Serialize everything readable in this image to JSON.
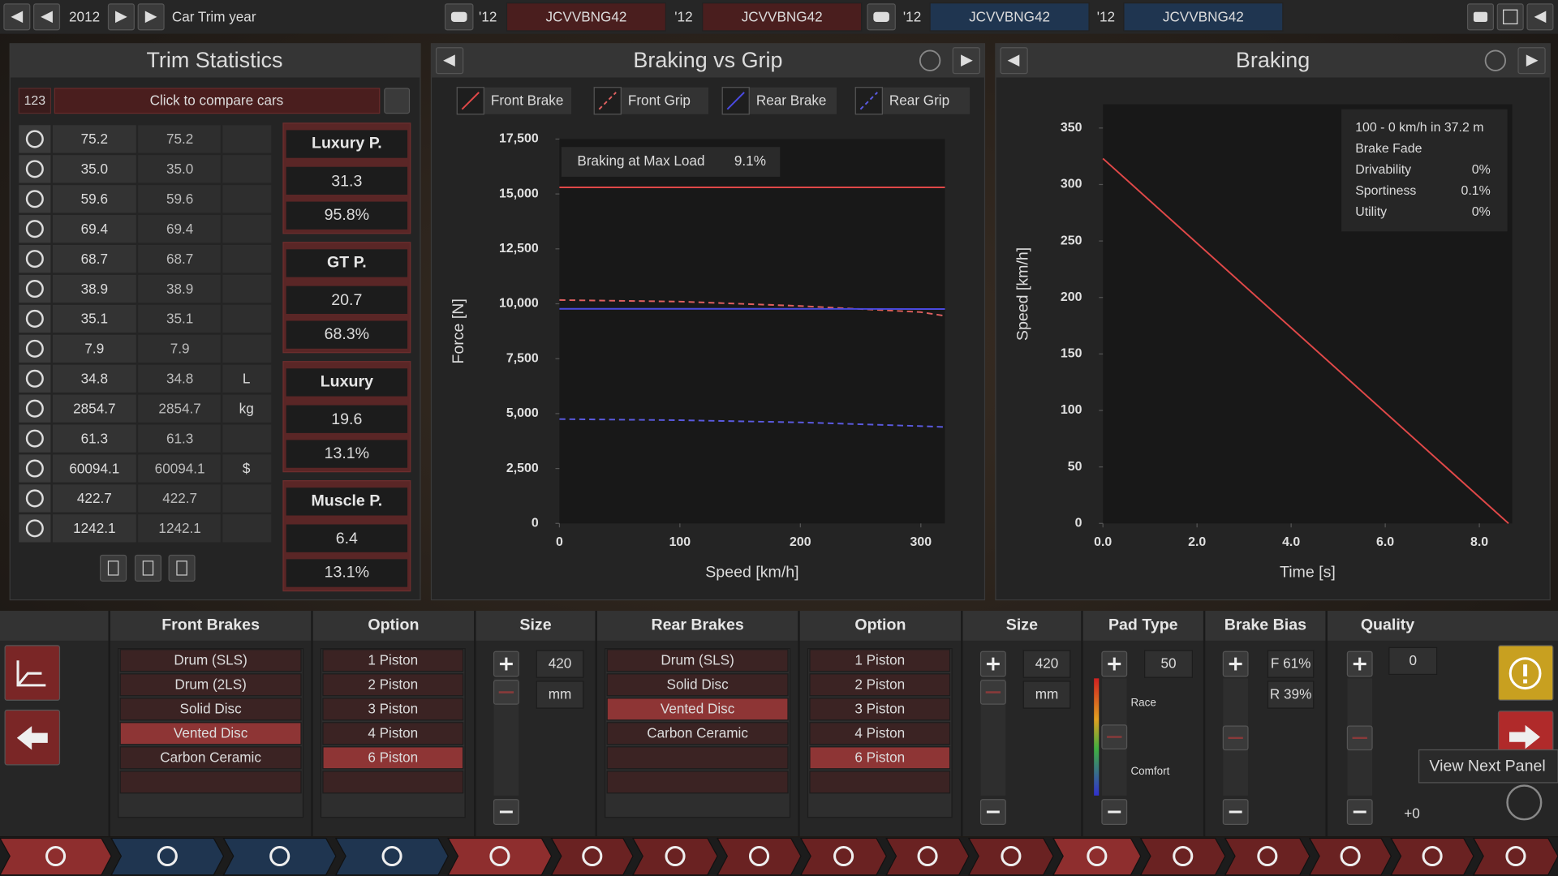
{
  "top_bar": {
    "year": "2012",
    "label": "Car Trim year",
    "slots": [
      {
        "year": "'12",
        "code": "JCVVBNG42"
      },
      {
        "year": "'12",
        "code": "JCVVBNG42"
      },
      {
        "year": "'12",
        "code": "JCVVBNG42"
      },
      {
        "year": "'12",
        "code": "JCVVBNG42"
      }
    ]
  },
  "trim_statistics": {
    "title": "Trim Statistics",
    "compare_count": "123",
    "compare_label": "Click to compare cars",
    "rows": [
      {
        "current": "75.2",
        "compare": "75.2"
      },
      {
        "current": "35.0",
        "compare": "35.0"
      },
      {
        "current": "59.6",
        "compare": "59.6"
      },
      {
        "current": "69.4",
        "compare": "69.4"
      },
      {
        "current": "68.7",
        "compare": "68.7"
      },
      {
        "current": "38.9",
        "compare": "38.9"
      },
      {
        "current": "35.1",
        "compare": "35.1"
      },
      {
        "current": "7.9",
        "compare": "7.9"
      },
      {
        "current": "34.8",
        "compare": "34.8",
        "unit": "L"
      },
      {
        "current": "2854.7",
        "compare": "2854.7",
        "unit": "kg"
      },
      {
        "current": "61.3",
        "compare": "61.3"
      },
      {
        "current": "60094.1",
        "compare": "60094.1",
        "unit": "$"
      },
      {
        "current": "422.7",
        "compare": "422.7"
      },
      {
        "current": "1242.1",
        "compare": "1242.1"
      }
    ],
    "scores": [
      {
        "name": "Luxury P.",
        "score": "31.3",
        "percent": "95.8%"
      },
      {
        "name": "GT P.",
        "score": "20.7",
        "percent": "68.3%"
      },
      {
        "name": "Luxury",
        "score": "19.6",
        "percent": "13.1%"
      },
      {
        "name": "Muscle P.",
        "score": "6.4",
        "percent": "13.1%"
      }
    ]
  },
  "chart_data": [
    {
      "type": "line",
      "title": "Braking vs Grip",
      "x_label": "Speed [km/h]",
      "y_label": "Force [N]",
      "annotation": {
        "label": "Braking at Max Load",
        "value": "9.1%"
      },
      "x": [
        0,
        100,
        200,
        300,
        320
      ],
      "xlim": [
        0,
        320
      ],
      "ylim": [
        0,
        17500
      ],
      "xticks": [
        0,
        100,
        200,
        300
      ],
      "yticks": [
        0,
        {
          "value": 2500,
          "label": "2,500"
        },
        {
          "value": 5000,
          "label": "5,000"
        },
        {
          "value": 7500,
          "label": "7,500"
        },
        {
          "value": 10000,
          "label": "10,000"
        },
        {
          "value": 12500,
          "label": "12,500"
        },
        {
          "value": 15000,
          "label": "15,000"
        },
        {
          "value": 17500,
          "label": "17,500"
        }
      ],
      "series": [
        {
          "name": "Front Brake",
          "color": "#e04848",
          "line_style": "solid",
          "values": [
            15300,
            15300,
            15300,
            15300,
            15300
          ]
        },
        {
          "name": "Front Grip",
          "color": "#e06060",
          "line_style": "dashed",
          "values": [
            10170,
            10100,
            9900,
            9620,
            9450
          ]
        },
        {
          "name": "Rear Brake",
          "color": "#4a4ae0",
          "line_style": "solid",
          "values": [
            9770,
            9770,
            9770,
            9760,
            9760
          ]
        },
        {
          "name": "Rear Grip",
          "color": "#5a5ae0",
          "line_style": "dashed",
          "values": [
            4750,
            4700,
            4600,
            4430,
            4390
          ]
        }
      ]
    },
    {
      "type": "line",
      "title": "Braking",
      "x_label": "Time [s]",
      "y_label": "Speed [km/h]",
      "x": [
        0,
        8.62
      ],
      "xlim": [
        0,
        8.7
      ],
      "ylim": [
        0,
        371
      ],
      "xticks": [
        {
          "value": 0,
          "label": "0.0"
        },
        {
          "value": 2,
          "label": "2.0"
        },
        {
          "value": 4,
          "label": "4.0"
        },
        {
          "value": 6,
          "label": "6.0"
        },
        {
          "value": 8,
          "label": "8.0"
        }
      ],
      "yticks": [
        0,
        50,
        100,
        150,
        200,
        250,
        300,
        350
      ],
      "series": [
        {
          "color": "#e04848",
          "line_style": "solid",
          "values": [
            323,
            0
          ]
        }
      ],
      "info": {
        "headline": "100 - 0 km/h in 37.2 m",
        "rows": [
          {
            "label": "Brake Fade"
          },
          {
            "label": "Drivability",
            "value": "0%"
          },
          {
            "label": "Sportiness",
            "value": "0.1%"
          },
          {
            "label": "Utility",
            "value": "0%"
          }
        ]
      }
    }
  ],
  "brakes_panel": {
    "headers": [
      "Front Brakes",
      "Option",
      "Size",
      "Rear Brakes",
      "Option",
      "Size",
      "Pad Type",
      "Brake Bias",
      "Quality"
    ],
    "front_brakes": {
      "options": [
        "Drum (SLS)",
        "Drum (2LS)",
        "Solid Disc",
        "Vented Disc",
        "Carbon Ceramic"
      ],
      "selected": 3
    },
    "front_option": {
      "options": [
        "1 Piston",
        "2 Piston",
        "3 Piston",
        "4 Piston",
        "6 Piston"
      ],
      "selected": 4
    },
    "front_size": {
      "value": "420",
      "unit": "mm"
    },
    "rear_brakes": {
      "options": [
        "Drum (SLS)",
        "Solid Disc",
        "Vented Disc",
        "Carbon Ceramic"
      ],
      "selected": 2
    },
    "rear_option": {
      "options": [
        "1 Piston",
        "2 Piston",
        "3 Piston",
        "4 Piston",
        "6 Piston"
      ],
      "selected": 4
    },
    "rear_size": {
      "value": "420",
      "unit": "mm"
    },
    "pad_type": {
      "value": "50",
      "high_label": "Race",
      "low_label": "Comfort"
    },
    "brake_bias": {
      "front": "F 61%",
      "rear": "R 39%"
    },
    "quality": {
      "value": "0",
      "modifier": "+0"
    }
  },
  "tooltip": "View Next Panel"
}
